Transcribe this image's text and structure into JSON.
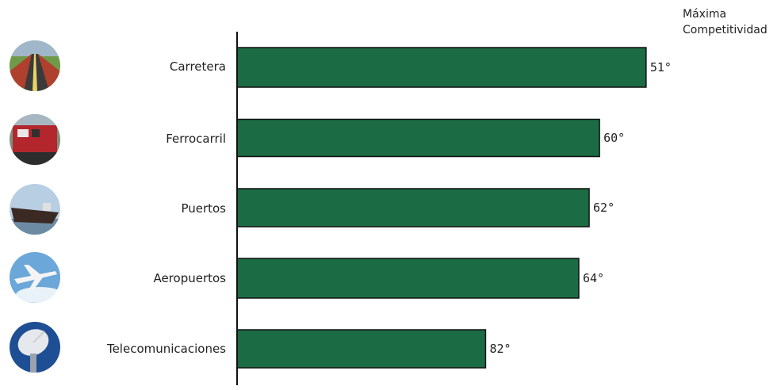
{
  "chart_data": {
    "type": "bar",
    "orientation": "horizontal",
    "categories": [
      "Carretera",
      "Ferrocarril",
      "Puertos",
      "Aeropuertos",
      "Telecomunicaciones"
    ],
    "values": [
      51,
      60,
      62,
      64,
      82
    ],
    "value_labels": [
      "51°",
      "60°",
      "62°",
      "64°",
      "82°"
    ],
    "icons": [
      "road-icon",
      "train-icon",
      "ship-icon",
      "airplane-icon",
      "satellite-dish-icon"
    ],
    "reference_line": {
      "value": 1,
      "label_line1": "Máxima",
      "label_line2": "Competitividad",
      "icon": "plus-circle-icon"
    },
    "bar_color": "#1b6b44",
    "reference_color": "#c0394a"
  }
}
